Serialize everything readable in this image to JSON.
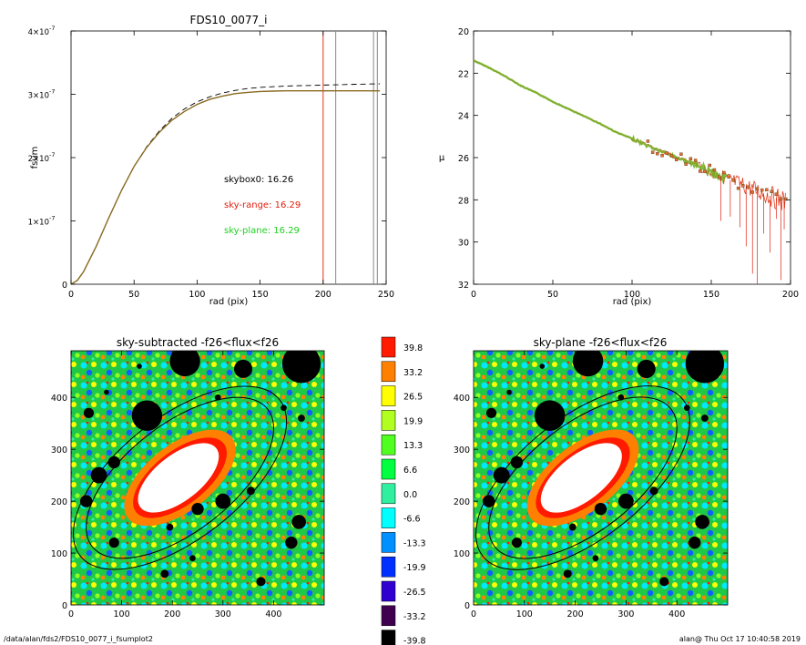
{
  "chart_data": [
    {
      "type": "line",
      "title": "FDS10_0077_i",
      "xlabel": "rad (pix)",
      "ylabel": "fsum",
      "xlim": [
        0,
        250
      ],
      "ylim": [
        0,
        4e-07
      ],
      "x_ticks": [
        "0",
        "50",
        "100",
        "150",
        "200",
        "250"
      ],
      "y_ticks": [
        {
          "value": 0,
          "label": "0",
          "exp": ""
        },
        {
          "value": 1e-07,
          "label": "1×10",
          "exp": "-7"
        },
        {
          "value": 2e-07,
          "label": "2×10",
          "exp": "-7"
        },
        {
          "value": 3e-07,
          "label": "3×10",
          "exp": "-7"
        },
        {
          "value": 4e-07,
          "label": "4×10",
          "exp": "-7"
        }
      ],
      "vlines": [
        {
          "x": 200,
          "color": "#e03020"
        },
        {
          "x": 210,
          "color": "#888888"
        },
        {
          "x": 240,
          "color": "#888888"
        },
        {
          "x": 243,
          "color": "#888888"
        }
      ],
      "annotations": [
        {
          "text": "skybox0: 16.26",
          "color": "#000000"
        },
        {
          "text": "sky-range: 16.29",
          "color": "#e02010"
        },
        {
          "text": "sky-plane: 16.29",
          "color": "#20d020"
        }
      ],
      "series": [
        {
          "style": "dashed",
          "color": "#000000",
          "x": [
            0,
            5,
            10,
            20,
            30,
            40,
            50,
            60,
            70,
            80,
            90,
            100,
            110,
            120,
            130,
            140,
            150,
            160,
            170,
            180,
            190,
            200,
            210,
            220,
            230,
            245
          ],
          "y": [
            0,
            6e-09,
            2e-08,
            6e-08,
            1.05e-07,
            1.48e-07,
            1.86e-07,
            2.17e-07,
            2.42e-07,
            2.62e-07,
            2.77e-07,
            2.88e-07,
            2.96e-07,
            3.02e-07,
            3.06e-07,
            3.09e-07,
            3.11e-07,
            3.12e-07,
            3.13e-07,
            3.135e-07,
            3.14e-07,
            3.145e-07,
            3.15e-07,
            3.155e-07,
            3.16e-07,
            3.165e-07
          ]
        },
        {
          "style": "solid",
          "color": "#8a6a20",
          "x": [
            0,
            5,
            10,
            20,
            30,
            40,
            50,
            60,
            70,
            80,
            90,
            100,
            110,
            120,
            130,
            140,
            150,
            160,
            170,
            180,
            190,
            200,
            210,
            220,
            230,
            245
          ],
          "y": [
            0,
            6e-09,
            2e-08,
            6e-08,
            1.05e-07,
            1.48e-07,
            1.86e-07,
            2.16e-07,
            2.4e-07,
            2.59e-07,
            2.73e-07,
            2.84e-07,
            2.92e-07,
            2.97e-07,
            3.01e-07,
            3.03e-07,
            3.045e-07,
            3.05e-07,
            3.055e-07,
            3.055e-07,
            3.055e-07,
            3.055e-07,
            3.055e-07,
            3.055e-07,
            3.055e-07,
            3.055e-07
          ]
        }
      ]
    },
    {
      "type": "scatter",
      "title": "",
      "xlabel": "rad (pix)",
      "ylabel": "μ",
      "xlim": [
        0,
        200
      ],
      "ylim": [
        32,
        20
      ],
      "x_ticks": [
        "0",
        "50",
        "100",
        "150",
        "200"
      ],
      "y_ticks": [
        "20",
        "22",
        "24",
        "26",
        "28",
        "30",
        "32"
      ],
      "profile": {
        "x": [
          0,
          10,
          20,
          30,
          40,
          50,
          60,
          70,
          80,
          90,
          100,
          110,
          120,
          130,
          140,
          150,
          160,
          170,
          180,
          190,
          197
        ],
        "y": [
          21.4,
          21.75,
          22.15,
          22.6,
          22.95,
          23.35,
          23.7,
          24.05,
          24.4,
          24.8,
          25.1,
          25.45,
          25.75,
          26.05,
          26.35,
          26.7,
          27.0,
          27.3,
          27.6,
          27.9,
          28.1
        ]
      }
    },
    {
      "type": "heatmap",
      "title": "sky-subtracted -f26<flux<f26",
      "xlim": [
        0,
        500
      ],
      "ylim": [
        0,
        490
      ],
      "x_ticks": [
        "0",
        "100",
        "200",
        "300",
        "400"
      ],
      "y_ticks": [
        "0",
        "100",
        "200",
        "300",
        "400"
      ]
    },
    {
      "type": "heatmap",
      "title": "sky-plane -f26<flux<f26",
      "xlim": [
        0,
        500
      ],
      "ylim": [
        0,
        490
      ],
      "x_ticks": [
        "0",
        "100",
        "200",
        "300",
        "400"
      ],
      "y_ticks": [
        "0",
        "100",
        "200",
        "300",
        "400"
      ]
    }
  ],
  "colorbar": {
    "labels": [
      "39.8",
      "33.2",
      "26.5",
      "19.9",
      "13.3",
      "6.6",
      "0.0",
      "-6.6",
      "-13.3",
      "-19.9",
      "-26.5",
      "-33.2",
      "-39.8"
    ],
    "colors": [
      "#ff1a00",
      "#ff8000",
      "#ffff00",
      "#b0ff20",
      "#50ff20",
      "#00ff40",
      "#30f0a0",
      "#00ffff",
      "#0090ff",
      "#0030ff",
      "#3000d0",
      "#400050",
      "#000000"
    ]
  },
  "footer": {
    "left": "/data/alan/fds2/FDS10_0077_i_fsumplot2",
    "right": "alan@  Thu Oct 17 10:40:58 2019"
  }
}
